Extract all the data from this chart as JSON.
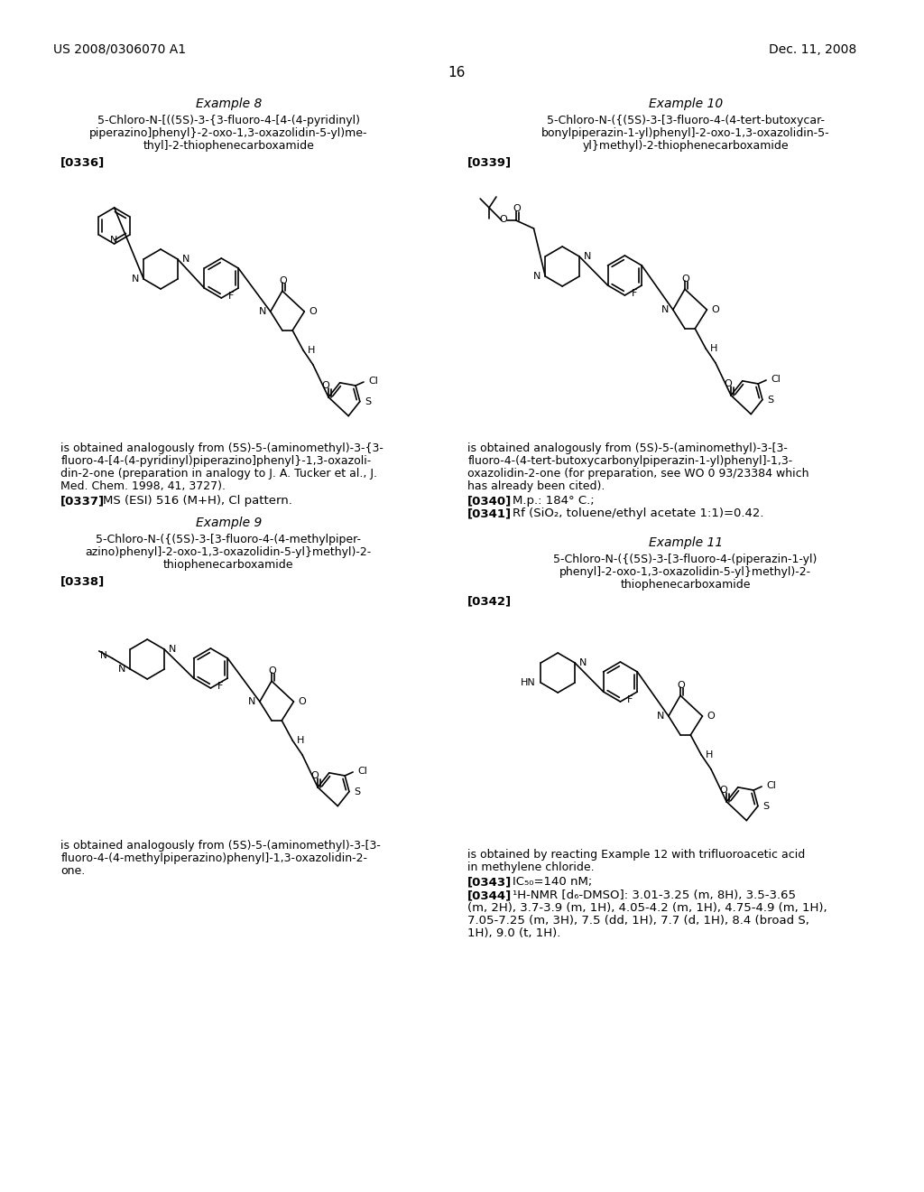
{
  "background_color": "#ffffff",
  "header_left": "US 2008/0306070 A1",
  "header_right": "Dec. 11, 2008",
  "page_number": "16",
  "example8_title": "Example 8",
  "example8_ref": "[0336]",
  "example8_ms": "[0337]",
  "example8_ms_text": "MS (ESI) 516 (M+H), Cl pattern.",
  "example9_title": "Example 9",
  "example9_ref": "[0338]",
  "example10_title": "Example 10",
  "example10_ref": "[0339]",
  "example10_mp": "[0340]",
  "example10_mp_text": "M.p.: 184° C.;",
  "example10_rf": "[0341]",
  "example10_rf_text": "Rf (SiO₂, toluene/ethyl acetate 1:1)=0.42.",
  "example11_title": "Example 11",
  "example11_ref": "[0342]",
  "example11_ic50": "[0343]",
  "example11_ic50_text": "IC₅₀=140 nM;",
  "example11_nmr": "[0344]",
  "text_color": "#000000"
}
